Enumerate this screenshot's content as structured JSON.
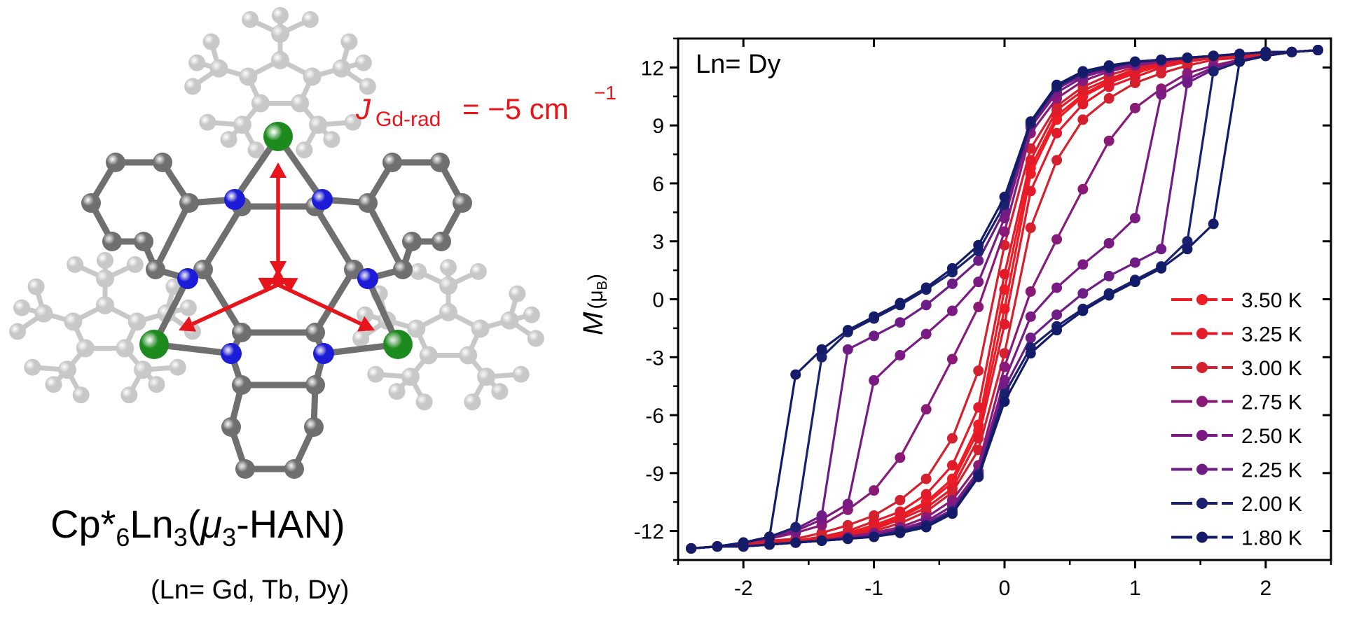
{
  "molecule": {
    "coupling_main": "J",
    "coupling_sub": "Gd-rad",
    "coupling_value": "= −5 cm",
    "coupling_sup": "−1",
    "formula": {
      "p1": "Cp*",
      "s1": "6",
      "p2": "Ln",
      "s2": "3",
      "p3": "(",
      "mu": "μ",
      "s3": "3",
      "p4": "-HAN)"
    },
    "ln_list": "(Ln= Gd, Tb, Dy)",
    "colors": {
      "Ln": "#1d8a1d",
      "N": "#1c1cd8",
      "C": "#6f6f6f",
      "Cp": "#c8c8c8",
      "arrow": "#e8141c"
    }
  },
  "chart_data": {
    "type": "line",
    "annotation": "Ln= Dy",
    "ylabel_main": "M",
    "ylabel_unit_open": "(",
    "ylabel_unit_mu": "μ",
    "ylabel_unit_sub": "B",
    "ylabel_unit_close": ")",
    "xlabel": "",
    "xlim": [
      -2.5,
      2.5
    ],
    "ylim": [
      -13.5,
      13.5
    ],
    "xticks": [
      -2,
      -1,
      0,
      1,
      2
    ],
    "xtick_labels": [
      "-2",
      "-1",
      "0",
      "1",
      "2"
    ],
    "yticks": [
      12,
      9,
      6,
      3,
      0,
      -3,
      -6,
      -9,
      -12
    ],
    "ytick_labels": [
      "12",
      "9",
      "6",
      "3",
      "0",
      "-3",
      "-6",
      "-9",
      "-12"
    ],
    "legend_position": "bottom-right",
    "grid": false,
    "series": [
      {
        "name": "3.50 K",
        "color": "#ee1c24",
        "x": [
          -2.4,
          -2.2,
          -2.0,
          -1.8,
          -1.6,
          -1.4,
          -1.2,
          -1.0,
          -0.8,
          -0.6,
          -0.4,
          -0.2,
          0.0,
          0.2,
          0.4,
          0.6,
          0.8,
          1.0,
          1.2,
          1.4,
          1.6,
          1.8,
          2.0,
          2.2,
          2.4
        ],
        "y": [
          -12.9,
          -12.8,
          -12.7,
          -12.6,
          -12.5,
          -12.3,
          -12.1,
          -11.7,
          -11.2,
          -10.5,
          -9.3,
          -6.5,
          0.5,
          6.8,
          9.5,
          10.6,
          11.3,
          11.8,
          12.1,
          12.3,
          12.5,
          12.6,
          12.7,
          12.8,
          12.9
        ]
      },
      {
        "name": "3.25 K",
        "color": "#e31a2a",
        "x": [
          -2.4,
          -2.2,
          -2.0,
          -1.8,
          -1.6,
          -1.4,
          -1.2,
          -1.0,
          -0.8,
          -0.6,
          -0.4,
          -0.2,
          0.0,
          0.2,
          0.4,
          0.6,
          0.8,
          1.0,
          1.2,
          1.4,
          1.6,
          1.8,
          2.0,
          2.2,
          2.4
        ],
        "y": [
          -12.9,
          -12.8,
          -12.7,
          -12.6,
          -12.5,
          -12.3,
          -12.0,
          -11.5,
          -11.0,
          -10.1,
          -8.6,
          -5.6,
          1.3,
          7.2,
          9.8,
          10.8,
          11.4,
          11.9,
          12.2,
          12.4,
          12.5,
          12.6,
          12.7,
          12.8,
          12.9
        ]
      },
      {
        "name": "3.00 K",
        "color": "#d5202e",
        "x": [
          -2.4,
          -2.2,
          -2.0,
          -1.8,
          -1.6,
          -1.4,
          -1.2,
          -1.0,
          -0.8,
          -0.6,
          -0.4,
          -0.2,
          0.0,
          0.2,
          0.4,
          0.6,
          0.8,
          1.0,
          1.2,
          1.4,
          1.6,
          1.8,
          2.0,
          2.2,
          2.4
        ],
        "y": [
          -12.9,
          -12.8,
          -12.7,
          -12.5,
          -12.4,
          -12.1,
          -11.7,
          -11.2,
          -10.4,
          -9.3,
          -7.2,
          -3.7,
          2.8,
          7.8,
          10.0,
          11.0,
          11.6,
          12.0,
          12.3,
          12.4,
          12.5,
          12.6,
          12.7,
          12.8,
          12.9
        ]
      },
      {
        "name": "2.75 K",
        "color": "#8a1a78",
        "x": [
          -2.4,
          -2.2,
          -2.0,
          -1.8,
          -1.6,
          -1.4,
          -1.2,
          -1.0,
          -0.8,
          -0.6,
          -0.4,
          -0.2,
          0.0,
          0.2,
          0.4,
          0.6,
          0.8,
          1.0,
          1.2,
          1.4,
          1.6,
          1.8,
          2.0,
          2.2,
          2.4
        ],
        "y": [
          -12.9,
          -12.8,
          -12.6,
          -12.4,
          -12.1,
          -11.7,
          -10.9,
          -9.9,
          -8.2,
          -5.7,
          -3.1,
          -0.4,
          3.5,
          8.6,
          10.4,
          11.3,
          11.8,
          12.1,
          12.3,
          12.5,
          12.6,
          12.7,
          12.8,
          12.8,
          12.9
        ]
      },
      {
        "name": "2.50 K",
        "color": "#7b1a82",
        "x": [
          -2.4,
          -2.2,
          -2.0,
          -1.8,
          -1.6,
          -1.4,
          -1.2,
          -1.0,
          -0.8,
          -0.6,
          -0.4,
          -0.2,
          0.0,
          0.2,
          0.4,
          0.6,
          0.8,
          1.0,
          1.2,
          1.4,
          1.6,
          1.8,
          2.0,
          2.2,
          2.4
        ],
        "y": [
          -12.9,
          -12.8,
          -12.6,
          -12.3,
          -12.0,
          -11.4,
          -10.6,
          -4.2,
          -2.9,
          -1.8,
          -0.6,
          0.9,
          4.2,
          8.9,
          10.7,
          11.5,
          11.9,
          12.2,
          12.4,
          12.5,
          12.6,
          12.7,
          12.8,
          12.8,
          12.9
        ]
      },
      {
        "name": "2.25 K",
        "color": "#6e1d86",
        "x": [
          -2.4,
          -2.2,
          -2.0,
          -1.8,
          -1.6,
          -1.4,
          -1.2,
          -1.0,
          -0.8,
          -0.6,
          -0.4,
          -0.2,
          0.0,
          0.2,
          0.4,
          0.6,
          0.8,
          1.0,
          1.2,
          1.4,
          1.6,
          1.8,
          2.0,
          2.2,
          2.4
        ],
        "y": [
          -12.9,
          -12.8,
          -12.6,
          -12.3,
          -11.9,
          -11.2,
          -2.6,
          -1.9,
          -1.2,
          -0.3,
          0.8,
          2.0,
          4.6,
          9.0,
          10.9,
          11.6,
          12.0,
          12.2,
          12.4,
          12.5,
          12.6,
          12.7,
          12.8,
          12.8,
          12.9
        ]
      },
      {
        "name": "2.00 K",
        "color": "#1a2270",
        "x": [
          -2.4,
          -2.2,
          -2.0,
          -1.8,
          -1.6,
          -1.4,
          -1.2,
          -1.0,
          -0.8,
          -0.6,
          -0.4,
          -0.2,
          0.0,
          0.2,
          0.4,
          0.6,
          0.8,
          1.0,
          1.2,
          1.4,
          1.6,
          1.8,
          2.0,
          2.2,
          2.4
        ],
        "y": [
          -12.9,
          -12.8,
          -12.6,
          -12.3,
          -11.8,
          -3.0,
          -1.7,
          -1.0,
          -0.3,
          0.5,
          1.4,
          2.5,
          4.9,
          9.1,
          11.0,
          11.7,
          12.0,
          12.3,
          12.4,
          12.5,
          12.6,
          12.7,
          12.8,
          12.8,
          12.9
        ]
      },
      {
        "name": "1.80 K",
        "color": "#141c6a",
        "x": [
          -2.4,
          -2.2,
          -2.0,
          -1.8,
          -1.6,
          -1.4,
          -1.2,
          -1.0,
          -0.8,
          -0.6,
          -0.4,
          -0.2,
          0.0,
          0.2,
          0.4,
          0.6,
          0.8,
          1.0,
          1.2,
          1.4,
          1.6,
          1.8,
          2.0,
          2.2,
          2.4
        ],
        "y": [
          -12.9,
          -12.8,
          -12.6,
          -12.3,
          -3.9,
          -2.6,
          -1.6,
          -0.9,
          -0.2,
          0.6,
          1.6,
          2.8,
          5.3,
          9.2,
          11.1,
          11.8,
          12.1,
          12.3,
          12.4,
          12.5,
          12.6,
          12.7,
          12.8,
          12.8,
          12.9
        ]
      }
    ]
  }
}
